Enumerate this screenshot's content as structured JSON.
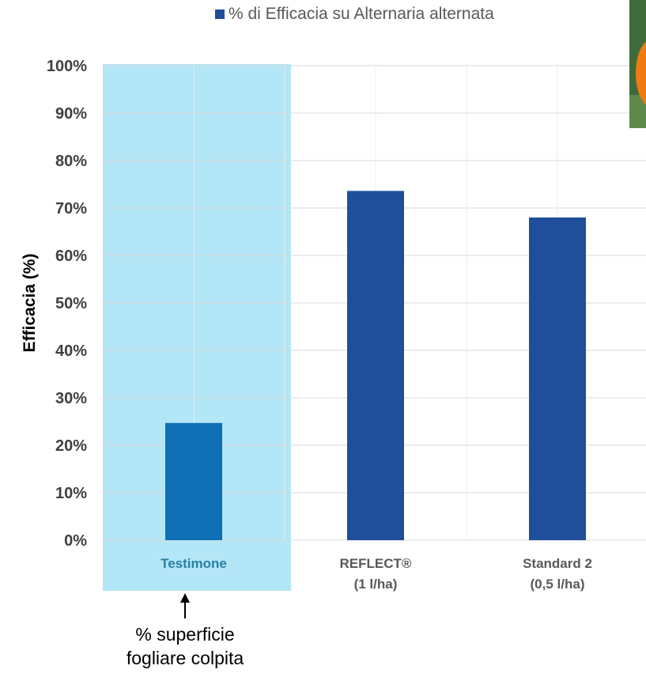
{
  "legend": {
    "label": "% di Efficacia su Alternaria alternata",
    "color": "#1f4e9a"
  },
  "annotation": {
    "line1": "% superficie",
    "line2": "fogliare colpita"
  },
  "chart_data": {
    "type": "bar",
    "categories": [
      [
        "Testimone"
      ],
      [
        "REFLECT®",
        "(1 l/ha)"
      ],
      [
        "Standard 2",
        "(0,5 l/ha)"
      ]
    ],
    "series": [
      {
        "name": "% di Efficacia su Alternaria alternata",
        "values": [
          24.7,
          73.6,
          68.0
        ]
      }
    ],
    "ylabel": "Efficacia (%)",
    "ylim": [
      0,
      100
    ],
    "yticks": [
      "0%",
      "10%",
      "20%",
      "30%",
      "40%",
      "50%",
      "60%",
      "70%",
      "80%",
      "90%",
      "100%"
    ],
    "grid": true,
    "legend_position": "top",
    "highlight_category": "Testimone",
    "colors": {
      "bar": "#1f4e9a",
      "highlight_bar": "#0e6fb4",
      "highlight_band": "#b3e6f7",
      "highlight_label": "#2a7fa3",
      "label": "#595959",
      "grid": "#d9d9d9"
    }
  }
}
